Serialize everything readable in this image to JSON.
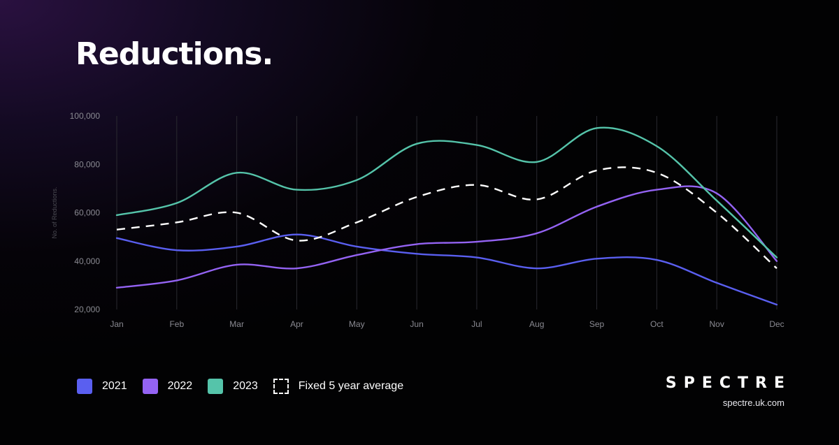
{
  "title": "Reductions.",
  "chart_data": {
    "type": "line",
    "title": "Reductions.",
    "xlabel": "",
    "ylabel": "No. of Reductions.",
    "categories": [
      "Jan",
      "Feb",
      "Mar",
      "Apr",
      "May",
      "Jun",
      "Jul",
      "Aug",
      "Sep",
      "Oct",
      "Nov",
      "Dec"
    ],
    "ylim": [
      20000,
      100000
    ],
    "yticks": [
      20000,
      40000,
      60000,
      80000,
      100000
    ],
    "ytick_labels": [
      "20,000",
      "40,000",
      "60,000",
      "80,000",
      "100,000"
    ],
    "grid": "vertical",
    "legend_position": "bottom-left",
    "series": [
      {
        "name": "2021",
        "color": "#5a5ff0",
        "dashed": false,
        "values": [
          49500,
          44500,
          46000,
          51000,
          46000,
          43000,
          41500,
          37000,
          41000,
          40500,
          31000,
          22000
        ]
      },
      {
        "name": "2022",
        "color": "#9463f3",
        "dashed": false,
        "values": [
          29000,
          32000,
          38500,
          37000,
          42500,
          47000,
          48000,
          51500,
          62500,
          69500,
          68000,
          40000
        ]
      },
      {
        "name": "2023",
        "color": "#55c4aa",
        "dashed": false,
        "values": [
          59000,
          64000,
          76500,
          69500,
          73500,
          88500,
          88000,
          81000,
          95000,
          87500,
          65000,
          41500
        ]
      },
      {
        "name": "Fixed 5 year average",
        "color": "#ffffff",
        "dashed": true,
        "values": [
          53000,
          56000,
          60000,
          48500,
          56000,
          66500,
          71500,
          65500,
          77500,
          76500,
          60000,
          37000
        ]
      }
    ]
  },
  "legend": [
    {
      "label": "2021",
      "color": "#5a5ff0"
    },
    {
      "label": "2022",
      "color": "#9463f3"
    },
    {
      "label": "2023",
      "color": "#55c4aa"
    },
    {
      "label": "Fixed 5 year average",
      "color": "#ffffff"
    }
  ],
  "brand": {
    "name": "SPECTRE",
    "url": "spectre.uk.com"
  }
}
